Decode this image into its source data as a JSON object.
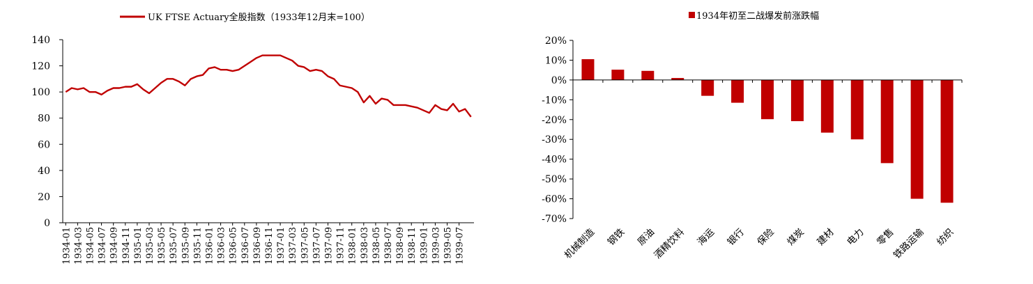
{
  "chart_data": [
    {
      "type": "line",
      "series": [
        {
          "name": "UK FTSE Actuary全股指数（1933年12月末=100）",
          "color": "#C00000",
          "values": [
            100,
            103,
            102,
            103,
            100,
            100,
            98,
            101,
            103,
            103,
            104,
            104,
            106,
            102,
            99,
            103,
            107,
            110,
            110,
            108,
            105,
            110,
            112,
            113,
            118,
            119,
            117,
            117,
            116,
            117,
            120,
            123,
            126,
            128,
            128,
            128,
            128,
            126,
            124,
            120,
            119,
            116,
            117,
            116,
            112,
            110,
            105,
            104,
            103,
            100,
            92,
            97,
            91,
            95,
            94,
            90,
            90,
            90,
            89,
            88,
            86,
            84,
            90,
            87,
            86,
            91,
            85,
            87,
            81
          ]
        }
      ],
      "x_tick_labels": [
        "1934-01",
        "1934-03",
        "1934-05",
        "1934-07",
        "1934-09",
        "1934-11",
        "1935-01",
        "1935-03",
        "1935-05",
        "1935-07",
        "1935-09",
        "1935-11",
        "1936-01",
        "1936-03",
        "1936-05",
        "1936-07",
        "1936-09",
        "1936-11",
        "1937-01",
        "1937-03",
        "1937-05",
        "1937-07",
        "1937-09",
        "1937-11",
        "1938-01",
        "1938-03",
        "1938-05",
        "1938-07",
        "1938-09",
        "1938-11",
        "1939-01",
        "1939-03",
        "1939-05",
        "1939-07"
      ],
      "y_ticks": [
        "0",
        "20",
        "40",
        "60",
        "80",
        "100",
        "120",
        "140"
      ],
      "ylim": [
        0,
        140
      ],
      "xlabel": "",
      "ylabel": "",
      "legend_position": "top-center",
      "grid": false
    },
    {
      "type": "bar",
      "series": [
        {
          "name": "1934年初至二战爆发前涨跌幅",
          "color": "#C00000",
          "values": [
            10.5,
            5.2,
            4.6,
            1.0,
            -8.0,
            -11.5,
            -19.8,
            -20.8,
            -26.6,
            -30.0,
            -42.0,
            -60.0,
            -62.0
          ]
        }
      ],
      "categories": [
        "机械制造",
        "钢铁",
        "原油",
        "酒精饮料",
        "海运",
        "银行",
        "保险",
        "煤炭",
        "建材",
        "电力",
        "零售",
        "铁路运输",
        "纺织"
      ],
      "y_ticks": [
        "20%",
        "10%",
        "0%",
        "-10%",
        "-20%",
        "-30%",
        "-40%",
        "-50%",
        "-60%",
        "-70%"
      ],
      "ylim": [
        -70,
        20
      ],
      "xlabel": "",
      "ylabel": "",
      "legend_position": "top-center",
      "grid": false
    }
  ]
}
